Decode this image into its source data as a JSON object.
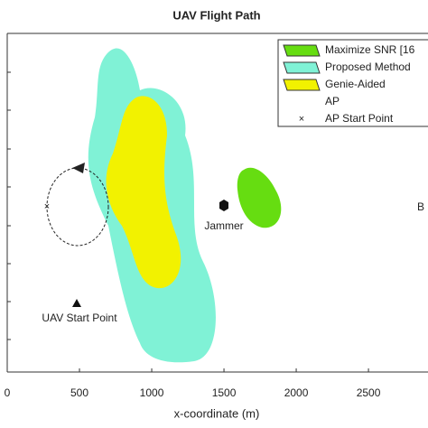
{
  "chart_data": {
    "type": "region",
    "title": "UAV Flight Path",
    "x_label": "x-coordinate (m)",
    "xlim": [
      0,
      2912
    ],
    "xticks": [
      0,
      500,
      1000,
      1500,
      2000,
      2500
    ],
    "legend": [
      "Maximize SNR [16",
      "Proposed Method",
      "Genie-Aided",
      "AP",
      "AP Start Point"
    ],
    "legend_position": "upper right",
    "colors": [
      "#66dd11",
      "#80f2d6",
      "#f2f200"
    ],
    "annotations": [
      "Jammer",
      "UAV Start Point",
      "B"
    ]
  }
}
